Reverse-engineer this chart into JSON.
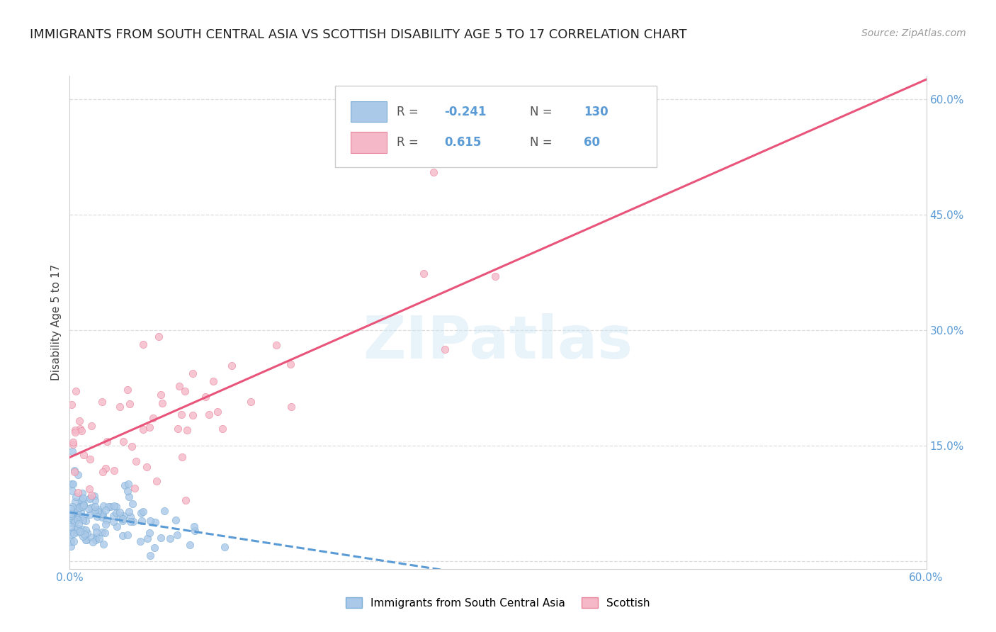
{
  "title": "IMMIGRANTS FROM SOUTH CENTRAL ASIA VS SCOTTISH DISABILITY AGE 5 TO 17 CORRELATION CHART",
  "source": "Source: ZipAtlas.com",
  "ylabel": "Disability Age 5 to 17",
  "x_min": 0.0,
  "x_max": 0.6,
  "y_min": -0.01,
  "y_max": 0.63,
  "grid_color": "#dddddd",
  "background_color": "#ffffff",
  "series1_color": "#aac8e8",
  "series1_edge": "#7aadd4",
  "series2_color": "#f5b8c8",
  "series2_edge": "#e8829a",
  "line1_color": "#5b9bd5",
  "line2_color": "#e8547a",
  "R1": -0.241,
  "N1": 130,
  "R2": 0.615,
  "N2": 60,
  "legend_labels": [
    "Immigrants from South Central Asia",
    "Scottish"
  ],
  "watermark": "ZIPatlas",
  "title_fontsize": 13,
  "source_fontsize": 10,
  "tick_fontsize": 11,
  "ylabel_fontsize": 11
}
